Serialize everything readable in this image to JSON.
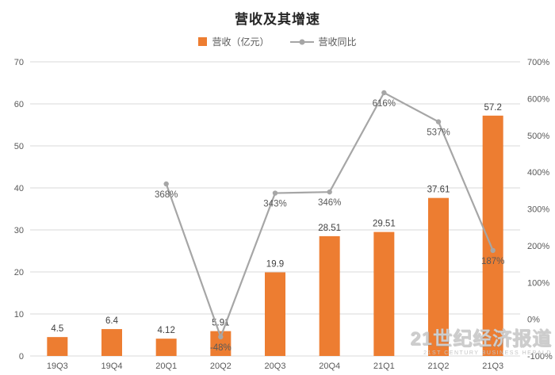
{
  "title": "营收及其增速",
  "legend": [
    {
      "label": "营收（亿元）",
      "type": "bar",
      "color": "#ED7D31"
    },
    {
      "label": "营收同比",
      "type": "line",
      "color": "#A6A6A6"
    }
  ],
  "watermark": {
    "cn": "21世纪经济报道",
    "en": "21ST CENTURY BUSINESS HERALD"
  },
  "chart_data": {
    "type": "bar",
    "subtype": "bar+line combo",
    "title": "营收及其增速",
    "categories": [
      "19Q3",
      "19Q4",
      "20Q1",
      "20Q2",
      "20Q3",
      "20Q4",
      "21Q1",
      "21Q2",
      "21Q3"
    ],
    "series": [
      {
        "name": "营收（亿元）",
        "type": "bar",
        "axis": "left",
        "color": "#ED7D31",
        "values": [
          4.5,
          6.4,
          4.12,
          5.91,
          19.9,
          28.51,
          29.51,
          37.61,
          57.2
        ],
        "labels": [
          "4.5",
          "6.4",
          "4.12",
          "5.91",
          "19.9",
          "28.51",
          "29.51",
          "37.61",
          "57.2"
        ]
      },
      {
        "name": "营收同比",
        "type": "line",
        "axis": "right",
        "color": "#A6A6A6",
        "values": [
          null,
          null,
          368,
          -48,
          343,
          346,
          616,
          537,
          187
        ],
        "labels": [
          null,
          null,
          "368%",
          "-48%",
          "343%",
          "346%",
          "616%",
          "537%",
          "187%"
        ]
      }
    ],
    "left_axis": {
      "min": 0,
      "max": 70,
      "step": 10,
      "ticks": [
        "70",
        "60",
        "50",
        "40",
        "30",
        "20",
        "10",
        "0"
      ]
    },
    "right_axis": {
      "min": -100,
      "max": 700,
      "step": 100,
      "ticks": [
        "700%",
        "600%",
        "500%",
        "400%",
        "300%",
        "200%",
        "100%",
        "0%",
        "-100%"
      ]
    },
    "grid": true,
    "legend_position": "top",
    "colors": {
      "grid": "#D9D9D9",
      "axis_text": "#595959",
      "bar_label": "#404040",
      "line_label": "#595959"
    }
  }
}
